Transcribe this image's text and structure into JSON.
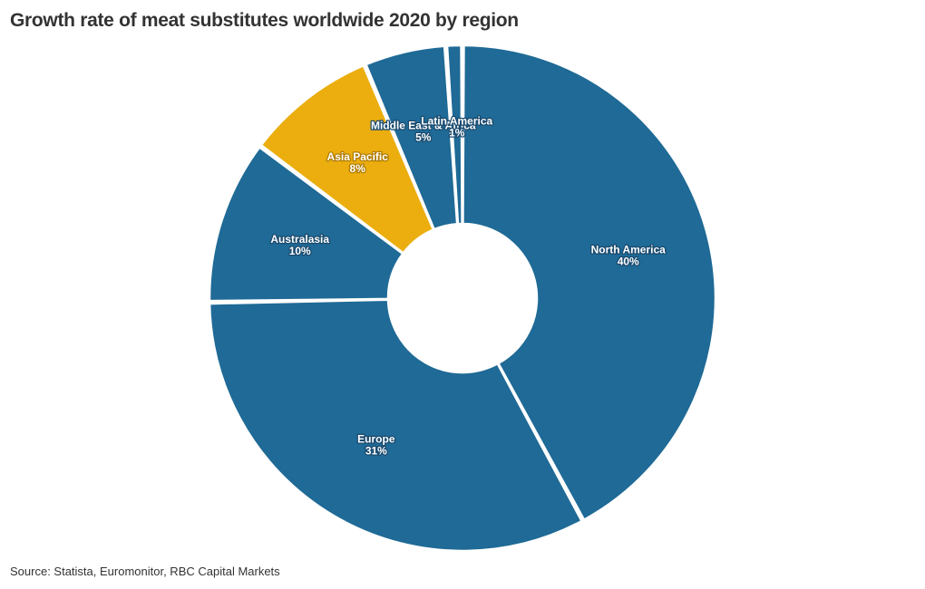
{
  "title": "Growth rate of meat substitutes worldwide 2020 by region",
  "source": "Source: Statista, Euromonitor, RBC Capital Markets",
  "colors": {
    "primary": "#1f6a96",
    "highlight": "#ebae0e",
    "separator": "#ffffff",
    "label_outline": "#1a4a6e",
    "text": "#333333"
  },
  "chart_data": {
    "type": "pie",
    "title": "Growth rate of meat substitutes worldwide 2020 by region",
    "categories": [
      "North America",
      "Europe",
      "Australasia",
      "Asia Pacific",
      "Middle East & Africa",
      "Latin America"
    ],
    "values": [
      40,
      31,
      10,
      8,
      5,
      1
    ],
    "value_labels": [
      "40%",
      "31%",
      "10%",
      "8%",
      "5%",
      "1%"
    ],
    "highlighted": [
      "Asia Pacific"
    ],
    "donut": true,
    "direction": "clockwise",
    "start": "top"
  }
}
